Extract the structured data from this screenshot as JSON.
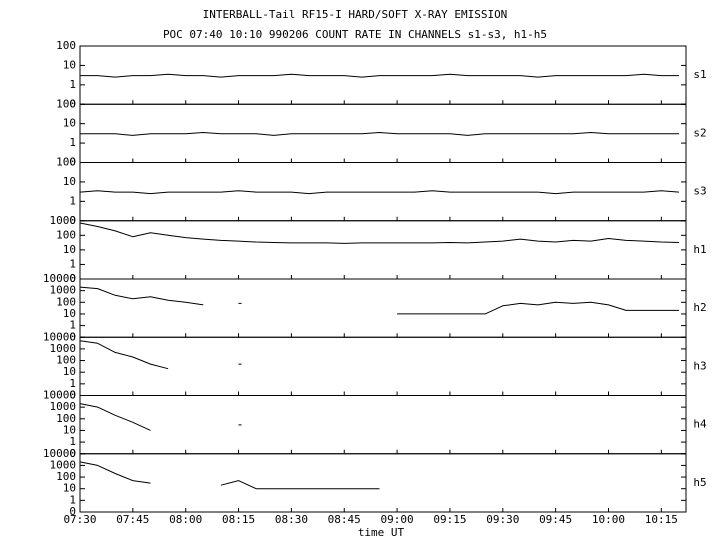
{
  "title": "INTERBALL-Tail RF15-I HARD/SOFT X-RAY EMISSION",
  "subtitle": "POC 07:40 10:10 990206  COUNT RATE IN CHANNELS s1-s3, h1-h5",
  "x_axis": {
    "xlabel": "time UT",
    "xlim": [
      "07:30",
      "10:22"
    ],
    "xticks": [
      "07:30",
      "07:45",
      "08:00",
      "08:15",
      "08:30",
      "08:45",
      "09:00",
      "09:15",
      "09:30",
      "09:45",
      "10:00",
      "10:15"
    ],
    "x": [
      "07:30",
      "07:35",
      "07:40",
      "07:45",
      "07:50",
      "07:55",
      "08:00",
      "08:05",
      "08:10",
      "08:15",
      "08:20",
      "08:25",
      "08:30",
      "08:35",
      "08:40",
      "08:45",
      "08:50",
      "08:55",
      "09:00",
      "09:05",
      "09:10",
      "09:15",
      "09:20",
      "09:25",
      "09:30",
      "09:35",
      "09:40",
      "09:45",
      "09:50",
      "09:55",
      "10:00",
      "10:05",
      "10:10",
      "10:15",
      "10:20"
    ]
  },
  "chart_data": [
    {
      "type": "line",
      "label": "s1",
      "log_scale": true,
      "ylim": [
        0,
        100
      ],
      "yticks": [
        0,
        1,
        10,
        100
      ],
      "color": "#000000",
      "values": [
        3,
        3,
        2.5,
        3,
        3,
        3.5,
        3,
        3,
        2.5,
        3,
        3,
        3,
        3.5,
        3,
        3,
        3,
        2.5,
        3,
        3,
        3,
        3,
        3.5,
        3,
        3,
        3,
        3,
        2.5,
        3,
        3,
        3,
        3,
        3,
        3.5,
        3,
        3
      ]
    },
    {
      "type": "line",
      "label": "s2",
      "log_scale": true,
      "ylim": [
        0,
        100
      ],
      "yticks": [
        0,
        1,
        10,
        100
      ],
      "color": "#000000",
      "values": [
        3,
        3,
        3,
        2.5,
        3,
        3,
        3,
        3.5,
        3,
        3,
        3,
        2.5,
        3,
        3,
        3,
        3,
        3,
        3.5,
        3,
        3,
        3,
        3,
        2.5,
        3,
        3,
        3,
        3,
        3,
        3,
        3.5,
        3,
        3,
        3,
        3,
        3
      ]
    },
    {
      "type": "line",
      "label": "s3",
      "log_scale": true,
      "ylim": [
        0,
        100
      ],
      "yticks": [
        0,
        1,
        10,
        100
      ],
      "color": "#000000",
      "values": [
        3,
        3.5,
        3,
        3,
        2.5,
        3,
        3,
        3,
        3,
        3.5,
        3,
        3,
        3,
        2.5,
        3,
        3,
        3,
        3,
        3,
        3,
        3.5,
        3,
        3,
        3,
        3,
        3,
        3,
        2.5,
        3,
        3,
        3,
        3,
        3,
        3.5,
        3
      ]
    },
    {
      "type": "line",
      "label": "h1",
      "log_scale": true,
      "ylim": [
        0,
        1000
      ],
      "yticks": [
        0,
        1,
        10,
        100,
        1000
      ],
      "color": "#000000",
      "values": [
        700,
        400,
        200,
        80,
        150,
        100,
        70,
        55,
        45,
        40,
        35,
        32,
        30,
        30,
        30,
        28,
        30,
        30,
        30,
        30,
        30,
        32,
        30,
        35,
        40,
        55,
        40,
        35,
        45,
        40,
        60,
        45,
        40,
        35,
        32
      ]
    },
    {
      "type": "line",
      "label": "h2",
      "log_scale": true,
      "ylim": [
        0,
        10000
      ],
      "yticks": [
        0,
        1,
        10,
        100,
        1000,
        10000
      ],
      "color": "#000000",
      "values": [
        2000,
        1500,
        400,
        200,
        300,
        150,
        100,
        60,
        null,
        80,
        null,
        null,
        null,
        null,
        null,
        null,
        null,
        null,
        10,
        10,
        10,
        10,
        10,
        10,
        50,
        80,
        60,
        100,
        80,
        100,
        60,
        20,
        20,
        20,
        20
      ]
    },
    {
      "type": "line",
      "label": "h3",
      "log_scale": true,
      "ylim": [
        0,
        10000
      ],
      "yticks": [
        0,
        1,
        10,
        100,
        1000,
        10000
      ],
      "color": "#000000",
      "values": [
        5000,
        3000,
        500,
        200,
        50,
        20,
        null,
        null,
        null,
        50,
        null,
        null,
        null,
        null,
        null,
        null,
        null,
        null,
        null,
        null,
        null,
        null,
        null,
        null,
        null,
        null,
        null,
        null,
        null,
        null,
        null,
        null,
        null,
        null,
        null
      ]
    },
    {
      "type": "line",
      "label": "h4",
      "log_scale": true,
      "ylim": [
        0,
        10000
      ],
      "yticks": [
        0,
        1,
        10,
        100,
        1000,
        10000
      ],
      "color": "#000000",
      "values": [
        2000,
        1000,
        200,
        50,
        10,
        null,
        null,
        null,
        null,
        30,
        null,
        null,
        null,
        null,
        null,
        null,
        null,
        null,
        null,
        null,
        null,
        null,
        null,
        null,
        null,
        null,
        null,
        null,
        null,
        null,
        null,
        null,
        null,
        null,
        null
      ]
    },
    {
      "type": "line",
      "label": "h5",
      "log_scale": true,
      "ylim": [
        0,
        10000
      ],
      "yticks": [
        0,
        1,
        10,
        100,
        1000,
        10000
      ],
      "color": "#000000",
      "values": [
        2000,
        1000,
        200,
        50,
        30,
        null,
        null,
        null,
        20,
        50,
        10,
        10,
        10,
        10,
        10,
        10,
        10,
        10,
        null,
        null,
        null,
        null,
        null,
        null,
        null,
        null,
        null,
        null,
        null,
        null,
        null,
        null,
        null,
        null,
        null
      ]
    }
  ]
}
